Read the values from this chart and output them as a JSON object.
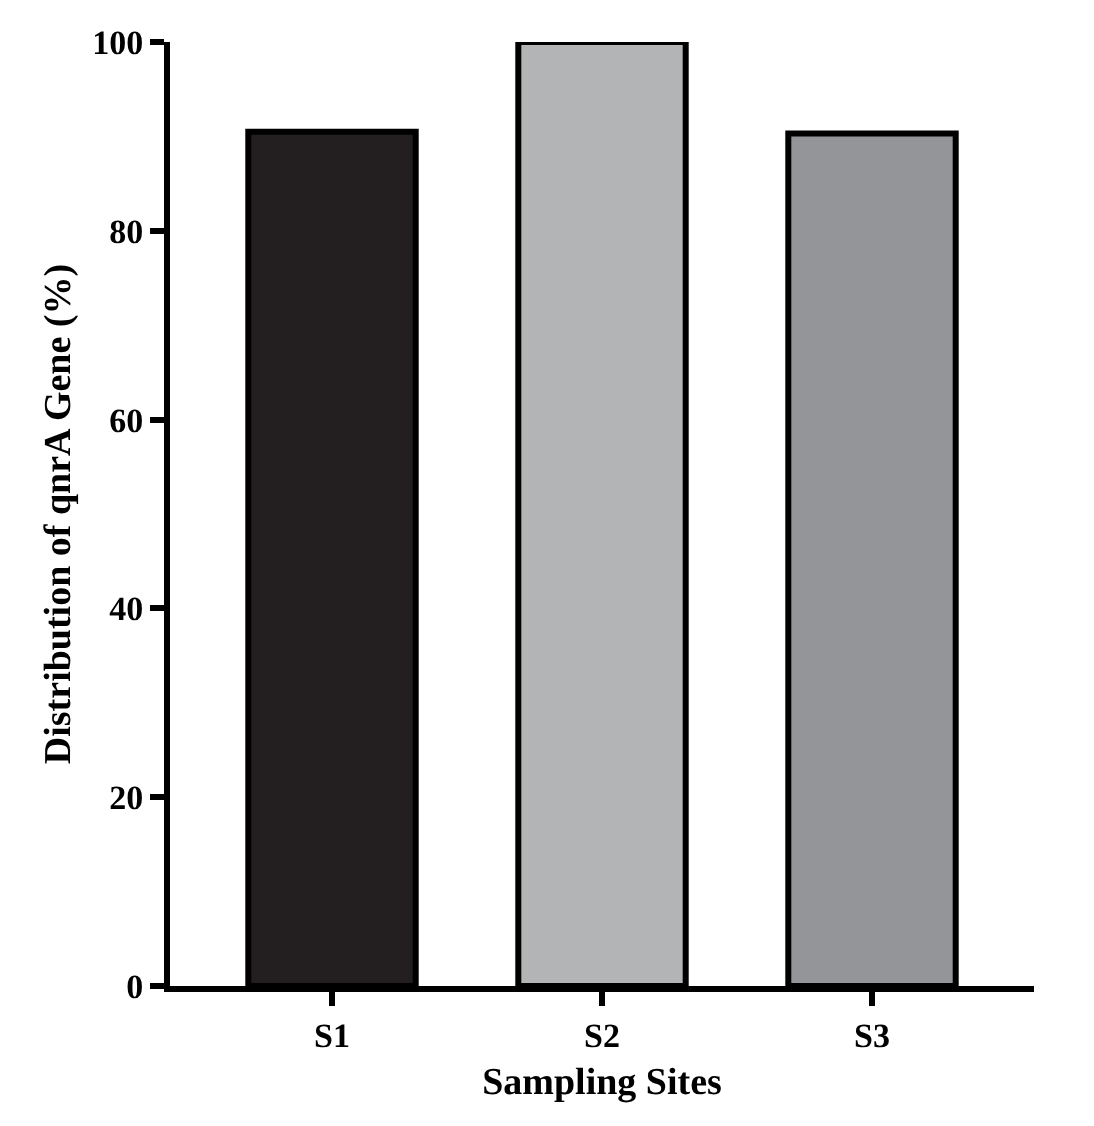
{
  "chart_data": {
    "type": "bar",
    "xlabel": "Sampling Sites",
    "ylabel": "Distribution of qnrA Gene (%)",
    "categories": [
      "S1",
      "S2",
      "S3"
    ],
    "values": [
      90.5,
      100,
      90.3
    ],
    "colors": [
      "#231f20",
      "#b3b4b6",
      "#939598"
    ],
    "ylim": [
      0,
      100
    ],
    "yticks": [
      0,
      20,
      40,
      60,
      80,
      100
    ]
  }
}
